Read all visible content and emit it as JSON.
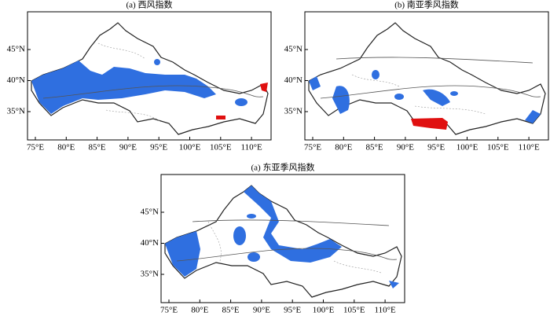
{
  "panels": [
    {
      "title": "(a) 西风指数",
      "xticks": [
        "75°E",
        "80°E",
        "85°E",
        "90°E",
        "95°E",
        "100°E",
        "105°E",
        "110°E"
      ],
      "yticks": [
        "45°N",
        "40°N",
        "35°N"
      ]
    },
    {
      "title": "(b) 南亚季风指数",
      "xticks": [
        "75°E",
        "80°E",
        "85°E",
        "90°E",
        "95°E",
        "100°E",
        "105°E",
        "110°E"
      ],
      "yticks": [
        "45°N",
        "40°N",
        "35°N"
      ]
    },
    {
      "title": "(a) 东亚季风指数",
      "xticks": [
        "75°E",
        "80°E",
        "85°E",
        "90°E",
        "95°E",
        "100°E",
        "105°E",
        "110°E"
      ],
      "yticks": [
        "45°N",
        "40°N",
        "35°N"
      ]
    }
  ]
}
